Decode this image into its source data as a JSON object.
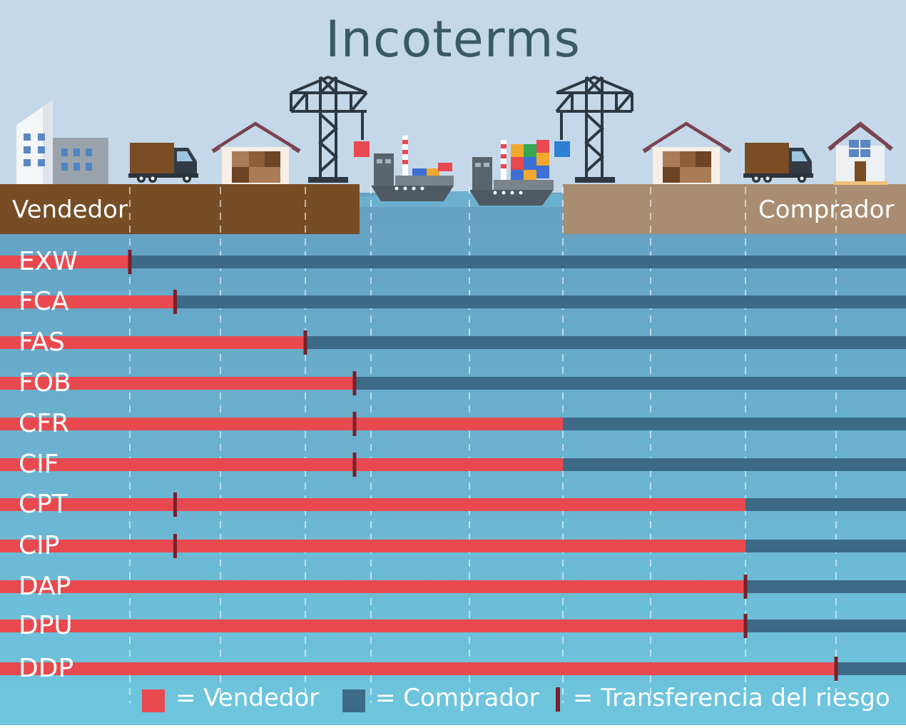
{
  "title": "Incoterms",
  "seller_label": "Vendedor",
  "buyer_label": "Comprador",
  "legend": {
    "seller": "= Vendedor",
    "buyer": "= Comprador",
    "risk": "= Transferencia del riesgo"
  },
  "colors": {
    "seller": "#e8494f",
    "buyer": "#3d6a87",
    "risk_marker": "#7a1f2a",
    "sky": "#c4d8e9",
    "seller_land": "#774d26",
    "buyer_land": "#a88d73",
    "water_top": "#6aa4c5",
    "water_bottom": "#6ec4dc",
    "title": "#3a5966"
  },
  "icons": [
    "office-building-icon",
    "truck-icon",
    "warehouse-icon",
    "port-crane-icon",
    "container-ship-icon",
    "container-ship-loaded-icon",
    "port-crane-icon",
    "warehouse-icon",
    "truck-icon",
    "house-icon"
  ],
  "stages": [
    "Vendedor",
    "Camión",
    "Almacén",
    "Terminal",
    "Buque",
    "Buque",
    "Terminal",
    "Almacén",
    "Camión",
    "Comprador"
  ],
  "chart_data": {
    "type": "bar",
    "categories": [
      "EXW",
      "FCA",
      "FAS",
      "FOB",
      "CFR",
      "CIF",
      "CPT",
      "CIP",
      "DAP",
      "DPU",
      "DDP"
    ],
    "stage_positions": [
      "Vendedor",
      "Camión",
      "Almacén",
      "Terminal",
      "Buque",
      "Terminal destino",
      "Almacén destino",
      "Camión destino",
      "Comprador"
    ],
    "series": [
      {
        "name": "= Vendedor",
        "values": [
          0.0,
          0.5,
          2.0,
          2.75,
          5.0,
          5.0,
          7.0,
          7.0,
          7.0,
          7.0,
          8.0
        ]
      },
      {
        "name": "= Transferencia del riesgo",
        "values": [
          0.0,
          0.5,
          2.0,
          2.75,
          2.75,
          2.75,
          0.5,
          0.5,
          7.0,
          7.0,
          8.0
        ]
      }
    ],
    "xlim": [
      0,
      8.6
    ]
  }
}
